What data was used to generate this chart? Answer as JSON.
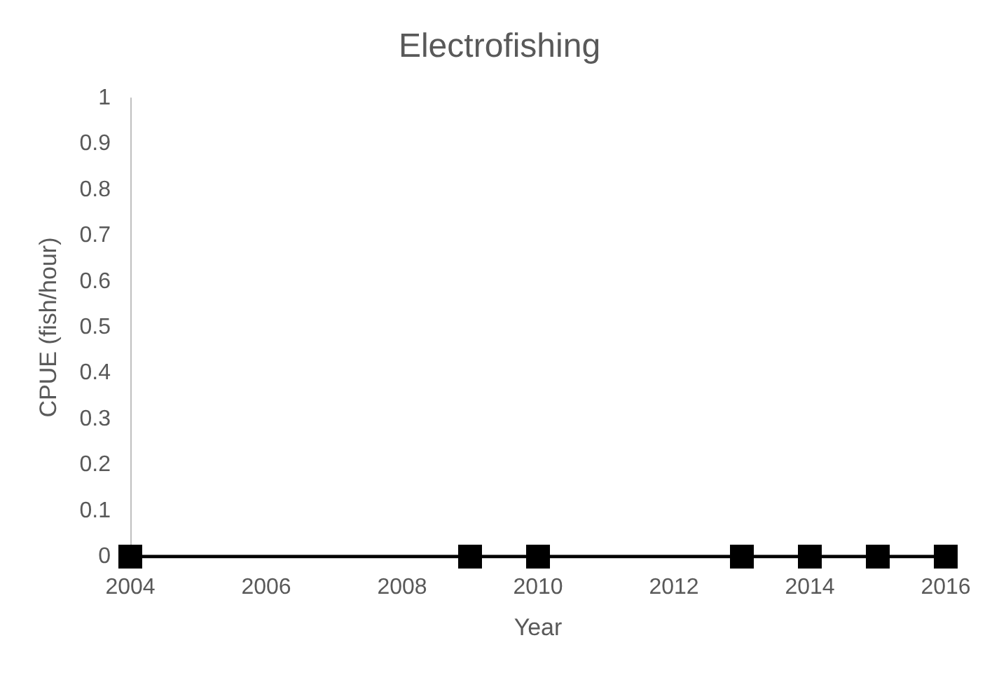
{
  "chart_data": {
    "type": "line",
    "title": "Electrofishing",
    "xlabel": "Year",
    "ylabel": "CPUE (fish/hour)",
    "x": [
      2004,
      2009,
      2010,
      2013,
      2014,
      2015,
      2016
    ],
    "series": [
      {
        "color": "#000000",
        "values": [
          0,
          0,
          0,
          0,
          0,
          0,
          0
        ]
      }
    ],
    "xlim": [
      2004,
      2016
    ],
    "xticks": [
      2004,
      2006,
      2008,
      2010,
      2012,
      2014,
      2016
    ],
    "ylim": [
      0,
      1
    ],
    "yticks": [
      0,
      0.1,
      0.2,
      0.3,
      0.4,
      0.5,
      0.6,
      0.7,
      0.8,
      0.9,
      1
    ],
    "grid": false,
    "marker": "square",
    "line_style": "solid"
  }
}
